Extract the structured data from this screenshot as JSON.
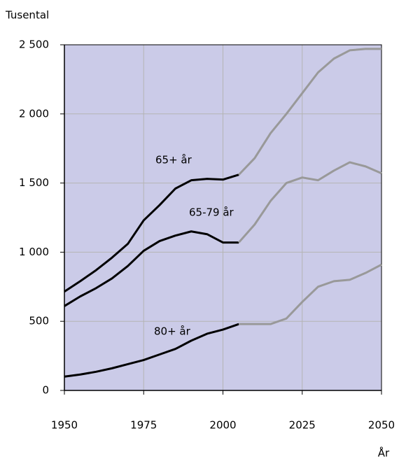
{
  "chart_data": {
    "type": "line",
    "y_axis_label": "Tusental",
    "x_axis_label": "År",
    "x": [
      1950,
      1955,
      1960,
      1965,
      1970,
      1975,
      1980,
      1985,
      1990,
      1995,
      2000,
      2005,
      2010,
      2015,
      2020,
      2025,
      2030,
      2035,
      2040,
      2045,
      2050
    ],
    "xlim": [
      1950,
      2050
    ],
    "xticks": [
      1950,
      1975,
      2000,
      2025,
      2050
    ],
    "ylim": [
      0,
      2500
    ],
    "yticks": [
      0,
      500,
      {
        "value": 1000,
        "label": "1 000"
      },
      {
        "value": 1500,
        "label": "1 500"
      },
      {
        "value": 2000,
        "label": "2 000"
      },
      {
        "value": 2500,
        "label": "2 500"
      }
    ],
    "grid": true,
    "background": "#cbcbe8",
    "series": [
      {
        "name": "65+ år",
        "color": "#000000",
        "values": [
          715,
          790,
          870,
          960,
          1060,
          1230,
          1340,
          1460,
          1520,
          1530,
          1525,
          1560,
          null,
          null,
          null,
          null,
          null,
          null,
          null,
          null,
          null
        ]
      },
      {
        "name": "65-79 år",
        "color": "#000000",
        "values": [
          610,
          680,
          740,
          810,
          900,
          1010,
          1080,
          1120,
          1150,
          1130,
          1070,
          1070,
          null,
          null,
          null,
          null,
          null,
          null,
          null,
          null,
          null
        ]
      },
      {
        "name": "80+ år",
        "color": "#000000",
        "values": [
          100,
          115,
          135,
          160,
          190,
          220,
          260,
          300,
          360,
          410,
          440,
          480,
          null,
          null,
          null,
          null,
          null,
          null,
          null,
          null,
          null
        ]
      },
      {
        "color": "#999999",
        "values": [
          null,
          null,
          null,
          null,
          null,
          null,
          null,
          null,
          null,
          null,
          null,
          1560,
          1680,
          1860,
          2000,
          2150,
          2300,
          2400,
          2460,
          2470,
          2470
        ]
      },
      {
        "color": "#999999",
        "values": [
          null,
          null,
          null,
          null,
          null,
          null,
          null,
          null,
          null,
          null,
          null,
          1070,
          1200,
          1370,
          1500,
          1540,
          1520,
          1590,
          1650,
          1620,
          1570
        ]
      },
      {
        "color": "#999999",
        "values": [
          null,
          null,
          null,
          null,
          null,
          null,
          null,
          null,
          null,
          null,
          null,
          480,
          480,
          480,
          520,
          640,
          750,
          790,
          800,
          850,
          910
        ]
      }
    ]
  }
}
